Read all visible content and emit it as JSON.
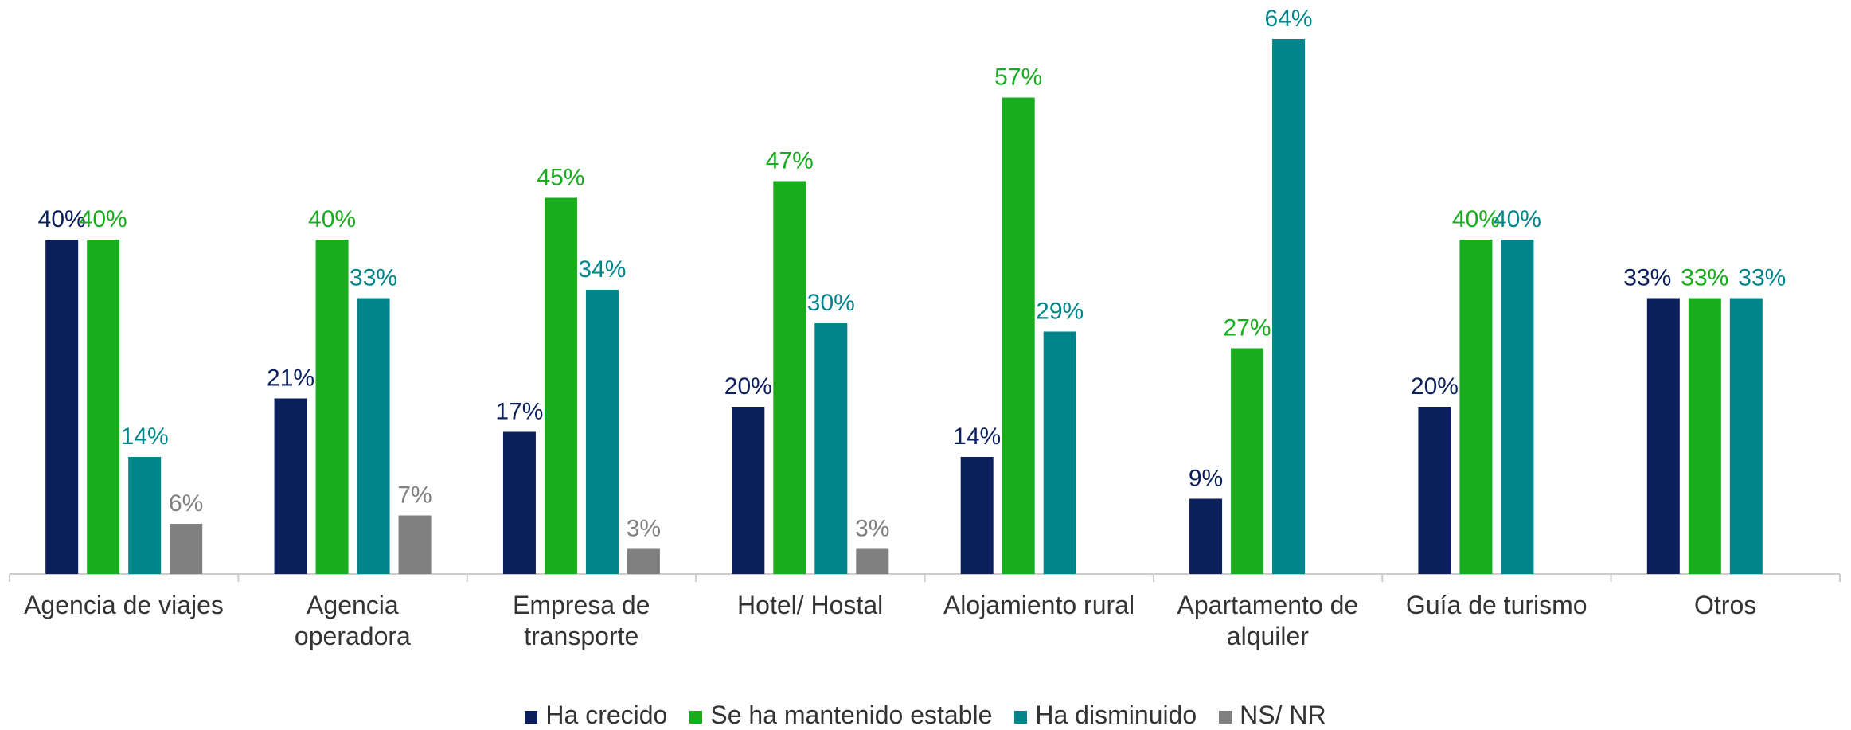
{
  "chart_data": {
    "type": "bar",
    "categories": [
      "Agencia de viajes",
      "Agencia\noperadora",
      "Empresa de\ntransporte",
      "Hotel/ Hostal",
      "Alojamiento rural",
      "Apartamento de\nalquiler",
      "Guía de turismo",
      "Otros"
    ],
    "series": [
      {
        "name": "Ha crecido",
        "color": "#0b1f5c",
        "values": [
          40,
          21,
          17,
          20,
          14,
          9,
          20,
          33
        ],
        "value_labels": [
          "40%",
          "21%",
          "17%",
          "20%",
          "14%",
          "9%",
          "20%",
          "33%"
        ]
      },
      {
        "name": "Se ha mantenido estable",
        "color": "#17ad1d",
        "values": [
          40,
          40,
          45,
          47,
          57,
          27,
          40,
          33
        ],
        "value_labels": [
          "40%",
          "40%",
          "45%",
          "47%",
          "57%",
          "27%",
          "40%",
          "33%"
        ]
      },
      {
        "name": "Ha disminuido",
        "color": "#00858a",
        "values": [
          14,
          33,
          34,
          30,
          29,
          64,
          40,
          33
        ],
        "value_labels": [
          "14%",
          "33%",
          "34%",
          "30%",
          "29%",
          "64%",
          "40%",
          "33%"
        ]
      },
      {
        "name": "NS/ NR",
        "color": "#808080",
        "values": [
          6,
          7,
          3,
          3,
          null,
          null,
          null,
          null
        ],
        "value_labels": [
          "6%",
          "7%",
          "3%",
          "3%",
          null,
          null,
          null,
          null
        ]
      }
    ]
  }
}
